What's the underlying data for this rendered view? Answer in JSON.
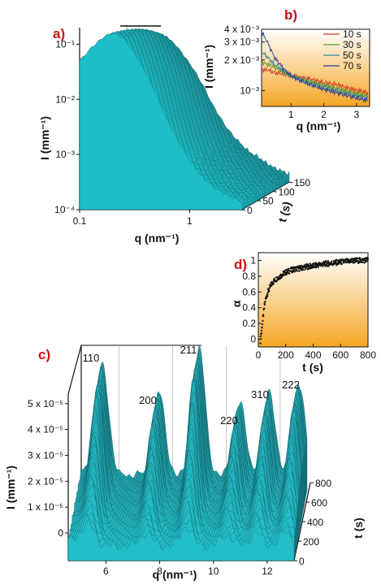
{
  "panels": {
    "a": "a)",
    "b": "b)",
    "c": "c)",
    "d": "d)"
  },
  "chart_data": [
    {
      "id": "a",
      "type": "surface3d",
      "xlabel": "q (nm⁻¹)",
      "ylabel": "I (mm⁻¹)",
      "zlabel": "t (s)",
      "xscale": "log",
      "yscale": "log",
      "xlim": [
        0.1,
        3
      ],
      "ylim": [
        0.0001,
        0.2
      ],
      "zlim": [
        0,
        150
      ],
      "xticks": [
        "0.1",
        "1"
      ],
      "yticks": [
        "10⁻⁴",
        "10⁻³",
        "10⁻²",
        "10⁻¹"
      ],
      "zticks": [
        "0",
        "50",
        "100",
        "150"
      ],
      "color": "#2aa3ad",
      "profile": {
        "q": [
          0.1,
          0.13,
          0.17,
          0.2,
          0.25,
          0.3,
          0.4,
          0.5,
          0.6,
          0.8,
          1.0,
          1.3,
          1.7,
          2.2,
          3.0
        ],
        "I": [
          0.05,
          0.09,
          0.14,
          0.16,
          0.13,
          0.08,
          0.03,
          0.012,
          0.005,
          0.0016,
          0.0008,
          0.0004,
          0.00025,
          0.00018,
          0.00014
        ]
      }
    },
    {
      "id": "b",
      "type": "line",
      "xlabel": "q (nm⁻¹)",
      "ylabel": "I (mm⁻¹)",
      "yscale": "log",
      "xlim": [
        0.1,
        3.4
      ],
      "ylim": [
        0.0007,
        0.004
      ],
      "xticks": [
        "1",
        "2",
        "3"
      ],
      "yticks": [
        "10⁻³",
        "2 x 10⁻³",
        "3 x 10⁻³",
        "4 x 10⁻³"
      ],
      "background": [
        "#ffffff",
        "#f5a623"
      ],
      "series": [
        {
          "name": "10 s",
          "color": "#d43a2a",
          "x": [
            0.1,
            0.3,
            0.5,
            0.8,
            1.0,
            1.3,
            1.6,
            2.0,
            2.4,
            2.8,
            3.1,
            3.35
          ],
          "y": [
            0.0016,
            0.0016,
            0.0015,
            0.00145,
            0.0014,
            0.00135,
            0.0013,
            0.0012,
            0.00115,
            0.00105,
            0.001,
            0.00095
          ]
        },
        {
          "name": "30 s",
          "color": "#5a9a2a",
          "x": [
            0.1,
            0.3,
            0.5,
            0.8,
            1.0,
            1.3,
            1.6,
            2.0,
            2.4,
            2.8,
            3.1,
            3.35
          ],
          "y": [
            0.0019,
            0.0018,
            0.0017,
            0.0015,
            0.0014,
            0.0013,
            0.00122,
            0.00113,
            0.00105,
            0.00098,
            0.00093,
            0.0009
          ]
        },
        {
          "name": "50 s",
          "color": "#2a8a9a",
          "x": [
            0.1,
            0.3,
            0.5,
            0.8,
            1.0,
            1.3,
            1.6,
            2.0,
            2.4,
            2.8,
            3.1,
            3.35
          ],
          "y": [
            0.0024,
            0.0021,
            0.0018,
            0.00155,
            0.0014,
            0.00128,
            0.00118,
            0.00108,
            0.001,
            0.00093,
            0.00088,
            0.00085
          ]
        },
        {
          "name": "70 s",
          "color": "#2a3aa0",
          "x": [
            0.1,
            0.3,
            0.5,
            0.8,
            1.0,
            1.3,
            1.6,
            2.0,
            2.4,
            2.8,
            3.1,
            3.35
          ],
          "y": [
            0.0038,
            0.0029,
            0.0021,
            0.0016,
            0.0014,
            0.00125,
            0.00114,
            0.00103,
            0.00095,
            0.00088,
            0.00083,
            0.0008
          ]
        }
      ]
    },
    {
      "id": "d",
      "type": "scatter",
      "xlabel": "t (s)",
      "ylabel": "α",
      "xlim": [
        0,
        800
      ],
      "ylim": [
        -0.1,
        1.1
      ],
      "xticks": [
        "0",
        "200",
        "400",
        "600",
        "800"
      ],
      "yticks": [
        "0",
        "0.2",
        "0.4",
        "0.6",
        "0.8",
        "1"
      ],
      "background": [
        "#ffffff",
        "#f5a623"
      ],
      "color": "#111111",
      "x": [
        15,
        20,
        25,
        30,
        35,
        40,
        45,
        50,
        60,
        70,
        80,
        90,
        100,
        120,
        140,
        160,
        180,
        200,
        230,
        260,
        300,
        350,
        400,
        450,
        500,
        550,
        600,
        650,
        700,
        750,
        800
      ],
      "y": [
        -0.02,
        0.05,
        0.12,
        0.2,
        0.28,
        0.35,
        0.42,
        0.48,
        0.55,
        0.6,
        0.64,
        0.68,
        0.71,
        0.75,
        0.78,
        0.8,
        0.83,
        0.85,
        0.87,
        0.89,
        0.9,
        0.92,
        0.93,
        0.95,
        0.96,
        0.97,
        0.98,
        0.99,
        1.0,
        1.0,
        1.01
      ]
    },
    {
      "id": "c",
      "type": "surface3d",
      "xlabel": "q (nm⁻¹)",
      "ylabel": "I (mm⁻¹)",
      "zlabel": "t (s)",
      "xlim": [
        4.6,
        13
      ],
      "ylim": [
        0,
        6e-05
      ],
      "zlim": [
        0,
        800
      ],
      "xticks": [
        "6",
        "8",
        "10",
        "12"
      ],
      "yticks": [
        "0",
        "1 x 10⁻⁵",
        "2 x 10⁻⁵",
        "3 x 10⁻⁵",
        "4 x 10⁻⁵",
        "5 x 10⁻⁵"
      ],
      "zticks": [
        "0",
        "200",
        "400",
        "600",
        "800"
      ],
      "color": "#2aa3ad",
      "peaks": [
        {
          "label": "110",
          "q": 5.4,
          "I": 4.75e-05
        },
        {
          "label": "200",
          "q": 7.5,
          "I": 3.8e-05
        },
        {
          "label": "211",
          "q": 9.0,
          "I": 5.45e-05
        },
        {
          "label": "220",
          "q": 10.5,
          "I": 3.4e-05
        },
        {
          "label": "310",
          "q": 11.6,
          "I": 3.8e-05
        },
        {
          "label": "222",
          "q": 12.7,
          "I": 4.15e-05
        }
      ]
    }
  ]
}
